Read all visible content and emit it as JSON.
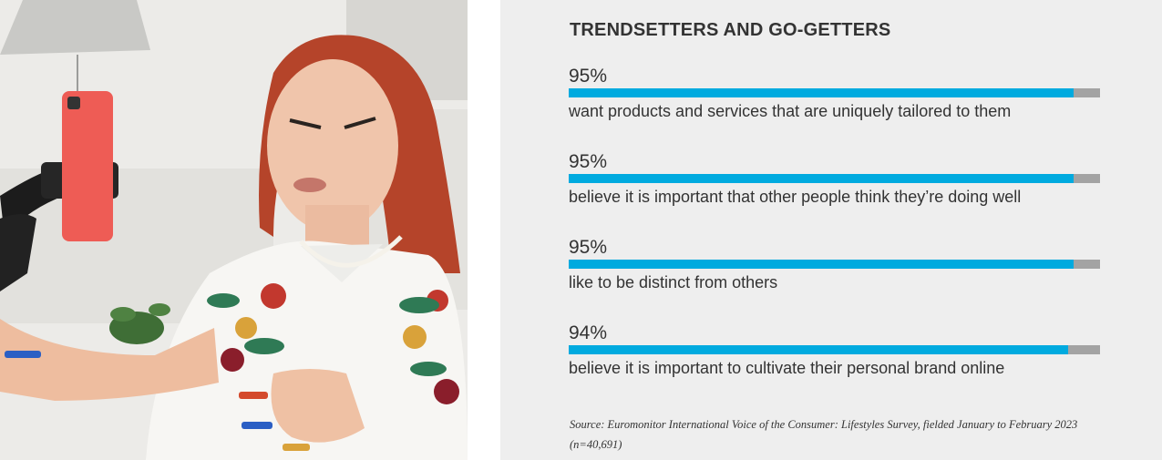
{
  "panel": {
    "title": "TRENDSETTERS AND GO-GETTERS",
    "source": "Source: Euromonitor International Voice of the Consumer: Lifestyles Survey, fielded January to February 2023 (n=40,691)"
  },
  "photo": {
    "subject": "woman-recording-video-with-phone"
  },
  "colors": {
    "panel_background": "#eeeeee",
    "bar_fill": "#00aadf",
    "bar_track": "#a3a3a3",
    "text": "#333333"
  },
  "chart_data": {
    "type": "bar",
    "orientation": "horizontal",
    "title": "TRENDSETTERS AND GO-GETTERS",
    "xlim": [
      0,
      100
    ],
    "categories": [
      "want products and services that are uniquely tailored to them",
      "believe it is important that other people think they’re doing well",
      "like to be distinct from others",
      "believe it is important to cultivate their personal brand online"
    ],
    "values": [
      95,
      95,
      95,
      94
    ],
    "labels": [
      "95%",
      "95%",
      "95%",
      "94%"
    ]
  }
}
